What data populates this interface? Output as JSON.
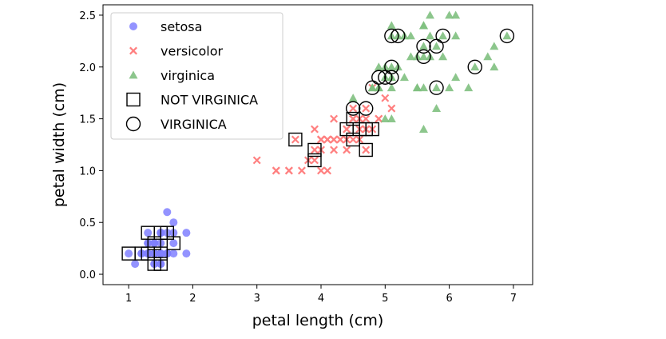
{
  "chart_data": {
    "type": "scatter",
    "xlabel": "petal length (cm)",
    "ylabel": "petal width (cm)",
    "xlim": [
      0.6,
      7.3
    ],
    "ylim": [
      -0.1,
      2.6
    ],
    "xticks": [
      "1",
      "2",
      "3",
      "4",
      "5",
      "6",
      "7"
    ],
    "yticks": [
      "0.0",
      "0.5",
      "1.0",
      "1.5",
      "2.0",
      "2.5"
    ],
    "grid": false,
    "legend_position": "top-left",
    "series": [
      {
        "name": "setosa",
        "marker": "circle",
        "color": "#8080ff",
        "points": [
          [
            1.4,
            0.2
          ],
          [
            1.4,
            0.2
          ],
          [
            1.3,
            0.2
          ],
          [
            1.5,
            0.2
          ],
          [
            1.4,
            0.2
          ],
          [
            1.7,
            0.4
          ],
          [
            1.4,
            0.3
          ],
          [
            1.5,
            0.2
          ],
          [
            1.4,
            0.2
          ],
          [
            1.5,
            0.1
          ],
          [
            1.5,
            0.2
          ],
          [
            1.6,
            0.2
          ],
          [
            1.4,
            0.1
          ],
          [
            1.1,
            0.1
          ],
          [
            1.2,
            0.2
          ],
          [
            1.5,
            0.4
          ],
          [
            1.3,
            0.4
          ],
          [
            1.4,
            0.3
          ],
          [
            1.7,
            0.3
          ],
          [
            1.5,
            0.3
          ],
          [
            1.7,
            0.2
          ],
          [
            1.5,
            0.4
          ],
          [
            1.0,
            0.2
          ],
          [
            1.7,
            0.5
          ],
          [
            1.9,
            0.2
          ],
          [
            1.6,
            0.2
          ],
          [
            1.6,
            0.4
          ],
          [
            1.5,
            0.2
          ],
          [
            1.4,
            0.2
          ],
          [
            1.6,
            0.2
          ],
          [
            1.6,
            0.2
          ],
          [
            1.5,
            0.4
          ],
          [
            1.5,
            0.1
          ],
          [
            1.4,
            0.2
          ],
          [
            1.5,
            0.2
          ],
          [
            1.2,
            0.2
          ],
          [
            1.3,
            0.2
          ],
          [
            1.4,
            0.1
          ],
          [
            1.3,
            0.2
          ],
          [
            1.5,
            0.2
          ],
          [
            1.3,
            0.3
          ],
          [
            1.3,
            0.3
          ],
          [
            1.3,
            0.2
          ],
          [
            1.6,
            0.6
          ],
          [
            1.9,
            0.4
          ],
          [
            1.4,
            0.3
          ],
          [
            1.6,
            0.2
          ],
          [
            1.4,
            0.2
          ],
          [
            1.5,
            0.2
          ],
          [
            1.4,
            0.2
          ]
        ]
      },
      {
        "name": "versicolor",
        "marker": "x",
        "color": "#ff8080",
        "points": [
          [
            4.7,
            1.4
          ],
          [
            4.5,
            1.5
          ],
          [
            4.9,
            1.5
          ],
          [
            4.0,
            1.3
          ],
          [
            4.6,
            1.5
          ],
          [
            4.5,
            1.3
          ],
          [
            4.7,
            1.6
          ],
          [
            3.3,
            1.0
          ],
          [
            4.6,
            1.3
          ],
          [
            3.9,
            1.4
          ],
          [
            3.5,
            1.0
          ],
          [
            4.2,
            1.5
          ],
          [
            4.0,
            1.0
          ],
          [
            4.7,
            1.4
          ],
          [
            3.6,
            1.3
          ],
          [
            4.4,
            1.4
          ],
          [
            4.5,
            1.5
          ],
          [
            4.1,
            1.0
          ],
          [
            4.5,
            1.5
          ],
          [
            3.9,
            1.1
          ],
          [
            4.8,
            1.8
          ],
          [
            4.0,
            1.3
          ],
          [
            4.9,
            1.5
          ],
          [
            4.7,
            1.2
          ],
          [
            4.3,
            1.3
          ],
          [
            4.4,
            1.4
          ],
          [
            4.8,
            1.4
          ],
          [
            5.0,
            1.7
          ],
          [
            4.5,
            1.5
          ],
          [
            3.5,
            1.0
          ],
          [
            3.8,
            1.1
          ],
          [
            3.7,
            1.0
          ],
          [
            3.9,
            1.2
          ],
          [
            5.1,
            1.6
          ],
          [
            4.5,
            1.5
          ],
          [
            4.5,
            1.6
          ],
          [
            4.7,
            1.5
          ],
          [
            4.4,
            1.3
          ],
          [
            4.1,
            1.3
          ],
          [
            4.0,
            1.3
          ],
          [
            4.4,
            1.2
          ],
          [
            4.6,
            1.4
          ],
          [
            4.0,
            1.2
          ],
          [
            3.3,
            1.0
          ],
          [
            4.2,
            1.3
          ],
          [
            4.2,
            1.2
          ],
          [
            4.2,
            1.3
          ],
          [
            4.3,
            1.3
          ],
          [
            3.0,
            1.1
          ],
          [
            4.1,
            1.3
          ]
        ]
      },
      {
        "name": "virginica",
        "marker": "triangle",
        "color": "#80c080",
        "points": [
          [
            6.0,
            2.5
          ],
          [
            5.1,
            1.9
          ],
          [
            5.9,
            2.1
          ],
          [
            5.6,
            1.8
          ],
          [
            5.8,
            2.2
          ],
          [
            6.6,
            2.1
          ],
          [
            4.5,
            1.7
          ],
          [
            6.3,
            1.8
          ],
          [
            5.8,
            1.8
          ],
          [
            6.1,
            2.5
          ],
          [
            5.1,
            2.0
          ],
          [
            5.3,
            1.9
          ],
          [
            5.5,
            2.1
          ],
          [
            5.0,
            2.0
          ],
          [
            5.1,
            2.4
          ],
          [
            5.3,
            2.3
          ],
          [
            5.5,
            1.8
          ],
          [
            6.7,
            2.2
          ],
          [
            6.9,
            2.3
          ],
          [
            5.0,
            1.5
          ],
          [
            5.7,
            2.3
          ],
          [
            4.9,
            2.0
          ],
          [
            6.7,
            2.0
          ],
          [
            4.9,
            1.8
          ],
          [
            5.7,
            2.1
          ],
          [
            6.0,
            1.8
          ],
          [
            4.8,
            1.8
          ],
          [
            4.9,
            1.8
          ],
          [
            5.6,
            2.1
          ],
          [
            5.8,
            1.6
          ],
          [
            6.1,
            1.9
          ],
          [
            6.4,
            2.0
          ],
          [
            5.6,
            2.2
          ],
          [
            5.1,
            1.5
          ],
          [
            5.6,
            1.4
          ],
          [
            6.1,
            2.3
          ],
          [
            5.6,
            2.4
          ],
          [
            5.5,
            1.8
          ],
          [
            4.8,
            1.8
          ],
          [
            5.4,
            2.1
          ],
          [
            5.6,
            2.4
          ],
          [
            5.1,
            2.3
          ],
          [
            5.1,
            1.9
          ],
          [
            5.9,
            2.3
          ],
          [
            5.7,
            2.5
          ],
          [
            5.2,
            2.3
          ],
          [
            5.0,
            1.9
          ],
          [
            5.2,
            2.0
          ],
          [
            5.4,
            2.3
          ],
          [
            5.1,
            1.8
          ]
        ]
      },
      {
        "name": "NOT VIRGINICA",
        "marker": "square-open",
        "color": "#000000",
        "points": [
          [
            1.0,
            0.2
          ],
          [
            1.2,
            0.2
          ],
          [
            1.3,
            0.4
          ],
          [
            1.4,
            0.1
          ],
          [
            1.4,
            0.3
          ],
          [
            1.5,
            0.1
          ],
          [
            1.5,
            0.4
          ],
          [
            1.6,
            0.4
          ],
          [
            1.7,
            0.3
          ],
          [
            1.3,
            0.2
          ],
          [
            1.5,
            0.2
          ],
          [
            3.6,
            1.3
          ],
          [
            3.9,
            1.1
          ],
          [
            3.9,
            1.2
          ],
          [
            4.4,
            1.4
          ],
          [
            4.5,
            1.3
          ],
          [
            4.5,
            1.5
          ],
          [
            4.7,
            1.4
          ],
          [
            4.7,
            1.2
          ],
          [
            4.8,
            1.4
          ],
          [
            4.6,
            1.4
          ]
        ]
      },
      {
        "name": "VIRGINICA",
        "marker": "circle-open",
        "color": "#000000",
        "points": [
          [
            4.5,
            1.6
          ],
          [
            4.7,
            1.6
          ],
          [
            4.8,
            1.8
          ],
          [
            4.9,
            1.9
          ],
          [
            5.0,
            1.9
          ],
          [
            5.1,
            2.0
          ],
          [
            5.1,
            1.9
          ],
          [
            5.1,
            2.3
          ],
          [
            5.2,
            2.3
          ],
          [
            5.6,
            2.1
          ],
          [
            5.6,
            2.2
          ],
          [
            5.8,
            2.2
          ],
          [
            5.8,
            1.8
          ],
          [
            5.9,
            2.3
          ],
          [
            6.4,
            2.0
          ],
          [
            6.9,
            2.3
          ]
        ]
      }
    ]
  }
}
